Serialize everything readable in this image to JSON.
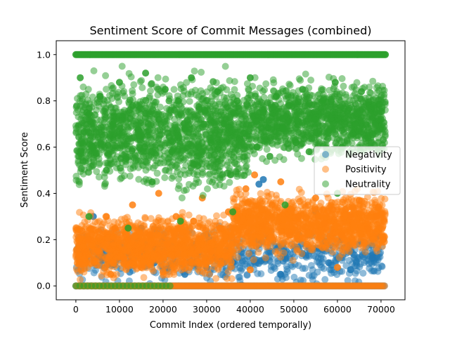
{
  "chart_data": {
    "type": "scatter",
    "title": "Sentiment Score of Commit Messages (combined)",
    "xlabel": "Commit Index (ordered temporally)",
    "ylabel": "Sentiment Score",
    "xlim": [
      -4500,
      75500
    ],
    "ylim": [
      -0.06,
      1.06
    ],
    "xticks": [
      0,
      10000,
      20000,
      30000,
      40000,
      50000,
      60000,
      70000
    ],
    "yticks": [
      0.0,
      0.2,
      0.4,
      0.6,
      0.8,
      1.0
    ],
    "xtick_labels": [
      "0",
      "10000",
      "20000",
      "30000",
      "40000",
      "50000",
      "60000",
      "70000"
    ],
    "ytick_labels": [
      "0.0",
      "0.2",
      "0.4",
      "0.6",
      "0.8",
      "1.0"
    ],
    "grid": false,
    "legend_position": "center-right",
    "marker_alpha": 0.5,
    "x_max": 71000,
    "series": [
      {
        "name": "Negativity",
        "color": "#1f77b4",
        "points": [
          [
            2000,
            0.15
          ],
          [
            6000,
            0.12
          ],
          [
            12000,
            0.2
          ],
          [
            18000,
            0.1
          ],
          [
            25000,
            0.05
          ],
          [
            30000,
            0.08
          ],
          [
            36000,
            0.1
          ],
          [
            42000,
            0.44
          ],
          [
            43000,
            0.46
          ],
          [
            47000,
            0.05
          ],
          [
            52000,
            0.14
          ],
          [
            58000,
            0.1
          ],
          [
            63000,
            0.07
          ],
          [
            68000,
            0.12
          ],
          [
            4000,
            0.3
          ],
          [
            15000,
            0.25
          ],
          [
            27000,
            0.18
          ],
          [
            55000,
            0.32
          ],
          [
            61000,
            0.2
          ],
          [
            66000,
            0.26
          ]
        ]
      },
      {
        "name": "Positivity",
        "color": "#ff7f0e",
        "points": [
          [
            1000,
            0.1
          ],
          [
            3000,
            0.2
          ],
          [
            5000,
            0.15
          ],
          [
            7000,
            0.3
          ],
          [
            9000,
            0.25
          ],
          [
            11000,
            0.12
          ],
          [
            13000,
            0.35
          ],
          [
            15000,
            0.08
          ],
          [
            17000,
            0.22
          ],
          [
            19000,
            0.4
          ],
          [
            21000,
            0.18
          ],
          [
            23000,
            0.3
          ],
          [
            25000,
            0.1
          ],
          [
            27000,
            0.28
          ],
          [
            29000,
            0.38
          ],
          [
            31000,
            0.15
          ],
          [
            33000,
            0.25
          ],
          [
            35000,
            0.32
          ],
          [
            37000,
            0.2
          ],
          [
            39000,
            0.42
          ],
          [
            41000,
            0.48
          ],
          [
            43000,
            0.26
          ],
          [
            45000,
            0.35
          ],
          [
            47000,
            0.45
          ],
          [
            49000,
            0.22
          ],
          [
            51000,
            0.3
          ],
          [
            53000,
            0.18
          ],
          [
            55000,
            0.38
          ],
          [
            57000,
            0.27
          ],
          [
            59000,
            0.33
          ],
          [
            61000,
            0.22
          ],
          [
            63000,
            0.3
          ],
          [
            65000,
            0.37
          ],
          [
            67000,
            0.25
          ],
          [
            69000,
            0.3
          ],
          [
            70500,
            0.2
          ],
          [
            8000,
            0.05
          ],
          [
            20000,
            0.06
          ],
          [
            40000,
            0.07
          ],
          [
            60000,
            0.08
          ]
        ]
      },
      {
        "name": "Neutrality",
        "color": "#2ca02c",
        "points": [
          [
            1000,
            0.9
          ],
          [
            2500,
            0.75
          ],
          [
            4000,
            0.6
          ],
          [
            5500,
            0.82
          ],
          [
            7000,
            0.5
          ],
          [
            8500,
            0.7
          ],
          [
            10000,
            0.88
          ],
          [
            11500,
            0.55
          ],
          [
            13000,
            0.78
          ],
          [
            14500,
            0.65
          ],
          [
            16000,
            0.92
          ],
          [
            17500,
            0.45
          ],
          [
            19000,
            0.72
          ],
          [
            20500,
            0.85
          ],
          [
            22000,
            0.58
          ],
          [
            23500,
            0.8
          ],
          [
            25000,
            0.68
          ],
          [
            26500,
            0.9
          ],
          [
            28000,
            0.52
          ],
          [
            29500,
            0.76
          ],
          [
            31000,
            0.62
          ],
          [
            32500,
            0.84
          ],
          [
            34000,
            0.7
          ],
          [
            35500,
            0.48
          ],
          [
            37000,
            0.8
          ],
          [
            38500,
            0.66
          ],
          [
            40000,
            0.9
          ],
          [
            41500,
            0.6
          ],
          [
            43000,
            0.75
          ],
          [
            44500,
            0.56
          ],
          [
            46000,
            0.82
          ],
          [
            47500,
            0.68
          ],
          [
            49000,
            0.78
          ],
          [
            50500,
            0.62
          ],
          [
            52000,
            0.85
          ],
          [
            53500,
            0.58
          ],
          [
            55000,
            0.72
          ],
          [
            56500,
            0.8
          ],
          [
            58000,
            0.66
          ],
          [
            59500,
            0.88
          ],
          [
            61000,
            0.6
          ],
          [
            62500,
            0.76
          ],
          [
            64000,
            0.7
          ],
          [
            65500,
            0.84
          ],
          [
            67000,
            0.64
          ],
          [
            68500,
            0.78
          ],
          [
            70000,
            0.72
          ],
          [
            3000,
            0.3
          ],
          [
            12000,
            0.25
          ],
          [
            24000,
            0.28
          ],
          [
            36000,
            0.32
          ],
          [
            48000,
            0.35
          ],
          [
            60000,
            0.4
          ]
        ]
      }
    ]
  }
}
